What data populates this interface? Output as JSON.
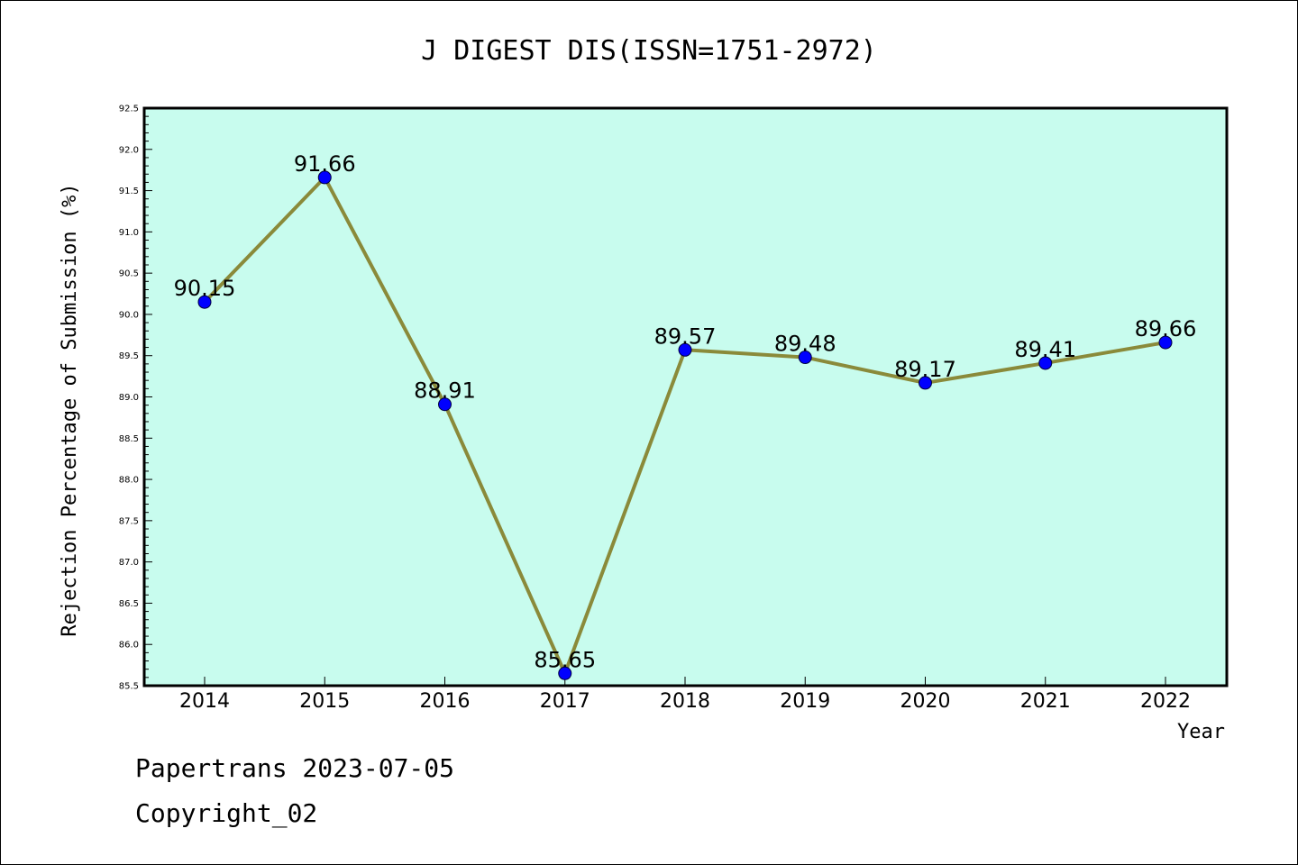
{
  "chart_data": {
    "type": "line",
    "title": "J DIGEST DIS(ISSN=1751-2972)",
    "xlabel": "Year",
    "ylabel": "Rejection Percentage of Submission (%)",
    "x": [
      "2014",
      "2015",
      "2016",
      "2017",
      "2018",
      "2019",
      "2020",
      "2021",
      "2022"
    ],
    "values": [
      90.15,
      91.66,
      88.91,
      85.65,
      89.57,
      89.48,
      89.17,
      89.41,
      89.66
    ],
    "data_labels": [
      "90.15",
      "91.66",
      "88.91",
      "85.65",
      "89.57",
      "89.48",
      "89.17",
      "89.41",
      "89.66"
    ],
    "ylim": [
      85.5,
      92.5
    ],
    "yticks": [
      "85.5",
      "86.0",
      "86.5",
      "87.0",
      "87.5",
      "88.0",
      "88.5",
      "89.0",
      "89.5",
      "90.0",
      "90.5",
      "91.0",
      "91.5",
      "92.0",
      "92.5"
    ],
    "grid": false,
    "legend": "none",
    "colors": {
      "plot_background": "#c8fcee",
      "line": "#8a8a3a",
      "marker": "#0000ff"
    }
  },
  "footer": {
    "line1": "Papertrans 2023-07-05",
    "line2": "Copyright_02"
  }
}
